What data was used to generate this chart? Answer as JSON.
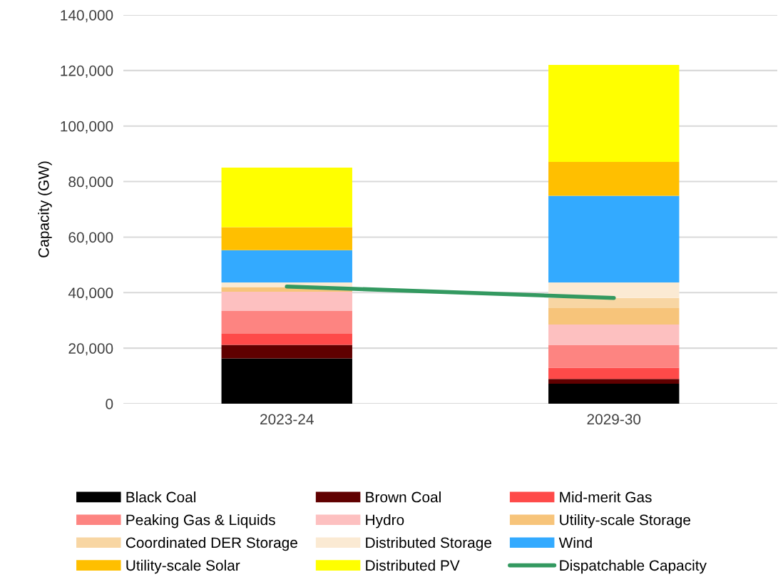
{
  "chart_data": {
    "type": "bar",
    "stacked": true,
    "ylabel": "Capacity (GW)",
    "categories": [
      "2023-24",
      "2029-30"
    ],
    "ylim": [
      0,
      140000
    ],
    "yticks": [
      {
        "value": 0,
        "label": "0"
      },
      {
        "value": 20000,
        "label": "20,000"
      },
      {
        "value": 40000,
        "label": "40,000"
      },
      {
        "value": 60000,
        "label": "60,000"
      },
      {
        "value": 80000,
        "label": "80,000"
      },
      {
        "value": 100000,
        "label": "100,000"
      },
      {
        "value": 120000,
        "label": "120,000"
      },
      {
        "value": 140000,
        "label": "140,000"
      }
    ],
    "grid": "y",
    "legend": "bottom",
    "series": [
      {
        "name": "Black Coal",
        "color": "#000000",
        "values": [
          16300,
          7200
        ]
      },
      {
        "name": "Brown Coal",
        "color": "#600000",
        "values": [
          4900,
          1700
        ]
      },
      {
        "name": "Mid-merit Gas",
        "color": "#fe4a49",
        "values": [
          4000,
          4100
        ]
      },
      {
        "name": "Peaking Gas & Liquids",
        "color": "#fd8481",
        "values": [
          8200,
          8200
        ]
      },
      {
        "name": "Hydro",
        "color": "#fdc0c0",
        "values": [
          6900,
          7300
        ]
      },
      {
        "name": "Utility-scale Storage",
        "color": "#f7c47a",
        "values": [
          1700,
          5900
        ]
      },
      {
        "name": "Coordinated DER Storage",
        "color": "#f8d6a3",
        "values": [
          0,
          3700
        ]
      },
      {
        "name": "Distributed Storage",
        "color": "#fbead3",
        "values": [
          1700,
          5600
        ]
      },
      {
        "name": "Wind",
        "color": "#33aaff",
        "values": [
          11600,
          31200
        ]
      },
      {
        "name": "Utility-scale Solar",
        "color": "#ffbf00",
        "values": [
          8300,
          12200
        ]
      },
      {
        "name": "Distributed PV",
        "color": "#ffff00",
        "values": [
          21400,
          34900
        ]
      },
      {
        "name": "Dispatchable Capacity",
        "type": "line",
        "color": "#339960",
        "values": [
          42200,
          38100
        ]
      }
    ]
  }
}
